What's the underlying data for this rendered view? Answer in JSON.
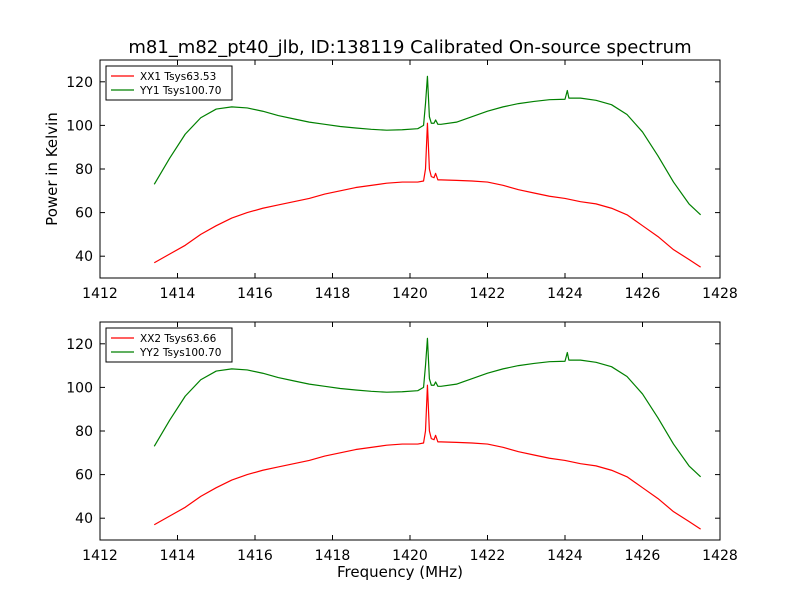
{
  "chart_data": {
    "title": "m81_m82_pt40_jlb, ID:138119 Calibrated On-source spectrum",
    "panels": [
      {
        "type": "line",
        "title": "m81_m82_pt40_jlb, ID:138119 Calibrated On-source spectrum",
        "xlabel": "",
        "ylabel": "Power in Kelvin",
        "xlim": [
          1412,
          1428
        ],
        "ylim": [
          30,
          130
        ],
        "xticks": [
          1412,
          1414,
          1416,
          1418,
          1420,
          1422,
          1424,
          1426,
          1428
        ],
        "yticks": [
          40,
          60,
          80,
          100,
          120
        ],
        "legend_position": "top-left",
        "series": [
          {
            "name": "XX1 Tsys63.53",
            "color": "#ff0000",
            "x": [
              1413.4,
              1413.8,
              1414.2,
              1414.6,
              1415.0,
              1415.4,
              1415.8,
              1416.2,
              1416.6,
              1417.0,
              1417.4,
              1417.8,
              1418.2,
              1418.6,
              1419.0,
              1419.4,
              1419.8,
              1420.2,
              1420.35,
              1420.4,
              1420.45,
              1420.5,
              1420.55,
              1420.62,
              1420.66,
              1420.72,
              1420.8,
              1421.2,
              1421.6,
              1422.0,
              1422.4,
              1422.8,
              1423.2,
              1423.6,
              1424.0,
              1424.4,
              1424.8,
              1425.2,
              1425.6,
              1426.0,
              1426.4,
              1426.8,
              1427.2,
              1427.5
            ],
            "y": [
              37,
              41,
              45,
              50,
              54,
              57.5,
              60,
              62,
              63.5,
              65,
              66.5,
              68.5,
              70,
              71.5,
              72.5,
              73.5,
              74,
              74,
              74.5,
              80,
              101,
              80,
              76.5,
              76,
              78,
              75,
              75,
              74.8,
              74.5,
              74,
              72.5,
              70.5,
              69,
              67.5,
              66.5,
              65,
              64,
              62,
              59,
              54,
              49,
              43,
              38.5,
              35
            ]
          },
          {
            "name": "YY1 Tsys100.70",
            "color": "#008000",
            "x": [
              1413.4,
              1413.8,
              1414.2,
              1414.6,
              1415.0,
              1415.4,
              1415.8,
              1416.2,
              1416.6,
              1417.0,
              1417.4,
              1417.8,
              1418.2,
              1418.6,
              1419.0,
              1419.4,
              1419.8,
              1420.2,
              1420.35,
              1420.4,
              1420.45,
              1420.5,
              1420.55,
              1420.62,
              1420.66,
              1420.72,
              1420.8,
              1421.2,
              1421.6,
              1422.0,
              1422.4,
              1422.8,
              1423.2,
              1423.6,
              1424.0,
              1424.06,
              1424.1,
              1424.14,
              1424.4,
              1424.8,
              1425.2,
              1425.6,
              1426.0,
              1426.4,
              1426.8,
              1427.2,
              1427.5
            ],
            "y": [
              73,
              85,
              96,
              103.5,
              107.5,
              108.5,
              108,
              106.5,
              104.5,
              103,
              101.5,
              100.5,
              99.5,
              98.8,
              98.2,
              97.8,
              98,
              98.5,
              100,
              110,
              122.5,
              104,
              101,
              101,
              102.5,
              100.5,
              100.5,
              101.5,
              104,
              106.5,
              108.5,
              110,
              111,
              111.8,
              112,
              116,
              112.5,
              112.5,
              112.5,
              111.5,
              109.5,
              105,
              97,
              86,
              74,
              64,
              59
            ]
          }
        ]
      },
      {
        "type": "line",
        "title": "",
        "xlabel": "Frequency (MHz)",
        "ylabel": "",
        "xlim": [
          1412,
          1428
        ],
        "ylim": [
          30,
          130
        ],
        "xticks": [
          1412,
          1414,
          1416,
          1418,
          1420,
          1422,
          1424,
          1426,
          1428
        ],
        "yticks": [
          40,
          60,
          80,
          100,
          120
        ],
        "legend_position": "top-left",
        "series": [
          {
            "name": "XX2 Tsys63.66",
            "color": "#ff0000",
            "x": [
              1413.4,
              1413.8,
              1414.2,
              1414.6,
              1415.0,
              1415.4,
              1415.8,
              1416.2,
              1416.6,
              1417.0,
              1417.4,
              1417.8,
              1418.2,
              1418.6,
              1419.0,
              1419.4,
              1419.8,
              1420.2,
              1420.35,
              1420.4,
              1420.45,
              1420.5,
              1420.55,
              1420.62,
              1420.66,
              1420.72,
              1420.8,
              1421.2,
              1421.6,
              1422.0,
              1422.4,
              1422.8,
              1423.2,
              1423.6,
              1424.0,
              1424.4,
              1424.8,
              1425.2,
              1425.6,
              1426.0,
              1426.4,
              1426.8,
              1427.2,
              1427.5
            ],
            "y": [
              37,
              41,
              45,
              50,
              54,
              57.5,
              60,
              62,
              63.5,
              65,
              66.5,
              68.5,
              70,
              71.5,
              72.5,
              73.5,
              74,
              74,
              74.5,
              80,
              101,
              80,
              76.5,
              76,
              78,
              75,
              75,
              74.8,
              74.5,
              74,
              72.5,
              70.5,
              69,
              67.5,
              66.5,
              65,
              64,
              62,
              59,
              54,
              49,
              43,
              38.5,
              35
            ]
          },
          {
            "name": "YY2 Tsys100.70",
            "color": "#008000",
            "x": [
              1413.4,
              1413.8,
              1414.2,
              1414.6,
              1415.0,
              1415.4,
              1415.8,
              1416.2,
              1416.6,
              1417.0,
              1417.4,
              1417.8,
              1418.2,
              1418.6,
              1419.0,
              1419.4,
              1419.8,
              1420.2,
              1420.35,
              1420.4,
              1420.45,
              1420.5,
              1420.55,
              1420.62,
              1420.66,
              1420.72,
              1420.8,
              1421.2,
              1421.6,
              1422.0,
              1422.4,
              1422.8,
              1423.2,
              1423.6,
              1424.0,
              1424.06,
              1424.1,
              1424.14,
              1424.4,
              1424.8,
              1425.2,
              1425.6,
              1426.0,
              1426.4,
              1426.8,
              1427.2,
              1427.5
            ],
            "y": [
              73,
              85,
              96,
              103.5,
              107.5,
              108.5,
              108,
              106.5,
              104.5,
              103,
              101.5,
              100.5,
              99.5,
              98.8,
              98.2,
              97.8,
              98,
              98.5,
              100,
              110,
              122.5,
              104,
              101,
              101,
              102.5,
              100.5,
              100.5,
              101.5,
              104,
              106.5,
              108.5,
              110,
              111,
              111.8,
              112,
              116,
              112.5,
              112.5,
              112.5,
              111.5,
              109.5,
              105,
              97,
              86,
              74,
              64,
              59
            ]
          }
        ]
      }
    ]
  }
}
